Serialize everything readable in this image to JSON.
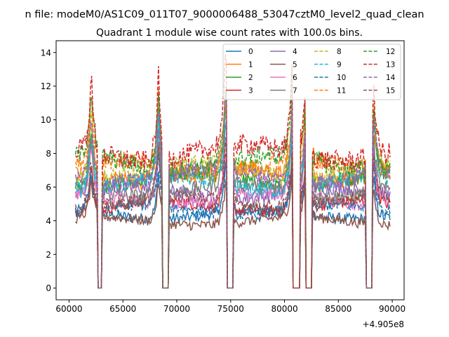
{
  "figure": {
    "suptitle": "n file: modeM0/AS1C09_011T07_9000006488_53047cztM0_level2_quad_clean",
    "title": "Quadrant 1 module wise count rates with 100.0s bins.",
    "offset_label": "+4.905e8"
  },
  "chart_data": {
    "type": "line",
    "title": "Quadrant 1 module wise count rates with 100.0s bins.",
    "xlabel": "",
    "ylabel": "",
    "x_offset": 490500000,
    "xlim": [
      58800,
      91100
    ],
    "ylim": [
      -0.7,
      14.7
    ],
    "x_ticks": [
      60000,
      65000,
      70000,
      75000,
      80000,
      85000,
      90000
    ],
    "x_tick_labels": [
      "60000",
      "65000",
      "70000",
      "75000",
      "80000",
      "85000",
      "90000"
    ],
    "y_ticks": [
      0,
      2,
      4,
      6,
      8,
      10,
      12,
      14
    ],
    "y_tick_labels": [
      "0",
      "2",
      "4",
      "6",
      "8",
      "10",
      "12",
      "14"
    ],
    "grid": false,
    "legend_position": "top-right",
    "bin_size_s": 100,
    "x_start": 60600,
    "x_end": 89800,
    "saa_gaps": [
      [
        62700,
        63000
      ],
      [
        68700,
        69200
      ],
      [
        74700,
        75200
      ],
      [
        80800,
        81400
      ],
      [
        82000,
        82500
      ],
      [
        87600,
        88100
      ]
    ],
    "flares": [
      {
        "center": 62050,
        "height": 4.0
      },
      {
        "center": 68300,
        "height": 4.2
      },
      {
        "center": 74550,
        "height": 5.0
      },
      {
        "center": 80700,
        "height": 4.5
      },
      {
        "center": 81950,
        "height": 3.8
      },
      {
        "center": 88300,
        "height": 3.6
      }
    ],
    "series": [
      {
        "name": "0",
        "color": "#1f77b4",
        "dash": "solid",
        "base": 4.5
      },
      {
        "name": "1",
        "color": "#ff7f0e",
        "dash": "solid",
        "base": 7.0
      },
      {
        "name": "2",
        "color": "#2ca02c",
        "dash": "solid",
        "base": 6.6
      },
      {
        "name": "3",
        "color": "#d62728",
        "dash": "solid",
        "base": 5.0
      },
      {
        "name": "4",
        "color": "#9467bd",
        "dash": "solid",
        "base": 5.8
      },
      {
        "name": "5",
        "color": "#8c564b",
        "dash": "solid",
        "base": 4.1
      },
      {
        "name": "6",
        "color": "#e377c2",
        "dash": "solid",
        "base": 5.5
      },
      {
        "name": "7",
        "color": "#7f7f7f",
        "dash": "solid",
        "base": 6.0
      },
      {
        "name": "8",
        "color": "#bcbd22",
        "dash": "dashed",
        "base": 7.2
      },
      {
        "name": "9",
        "color": "#17becf",
        "dash": "dashed",
        "base": 6.4
      },
      {
        "name": "10",
        "color": "#1f77b4",
        "dash": "dashed",
        "base": 4.8
      },
      {
        "name": "11",
        "color": "#ff7f0e",
        "dash": "dashed",
        "base": 7.4
      },
      {
        "name": "12",
        "color": "#2ca02c",
        "dash": "dashed",
        "base": 7.7
      },
      {
        "name": "13",
        "color": "#d62728",
        "dash": "dashed",
        "base": 8.3
      },
      {
        "name": "14",
        "color": "#9467bd",
        "dash": "dashed",
        "base": 6.9
      },
      {
        "name": "15",
        "color": "#8c564b",
        "dash": "dashed",
        "base": 5.3
      }
    ]
  }
}
